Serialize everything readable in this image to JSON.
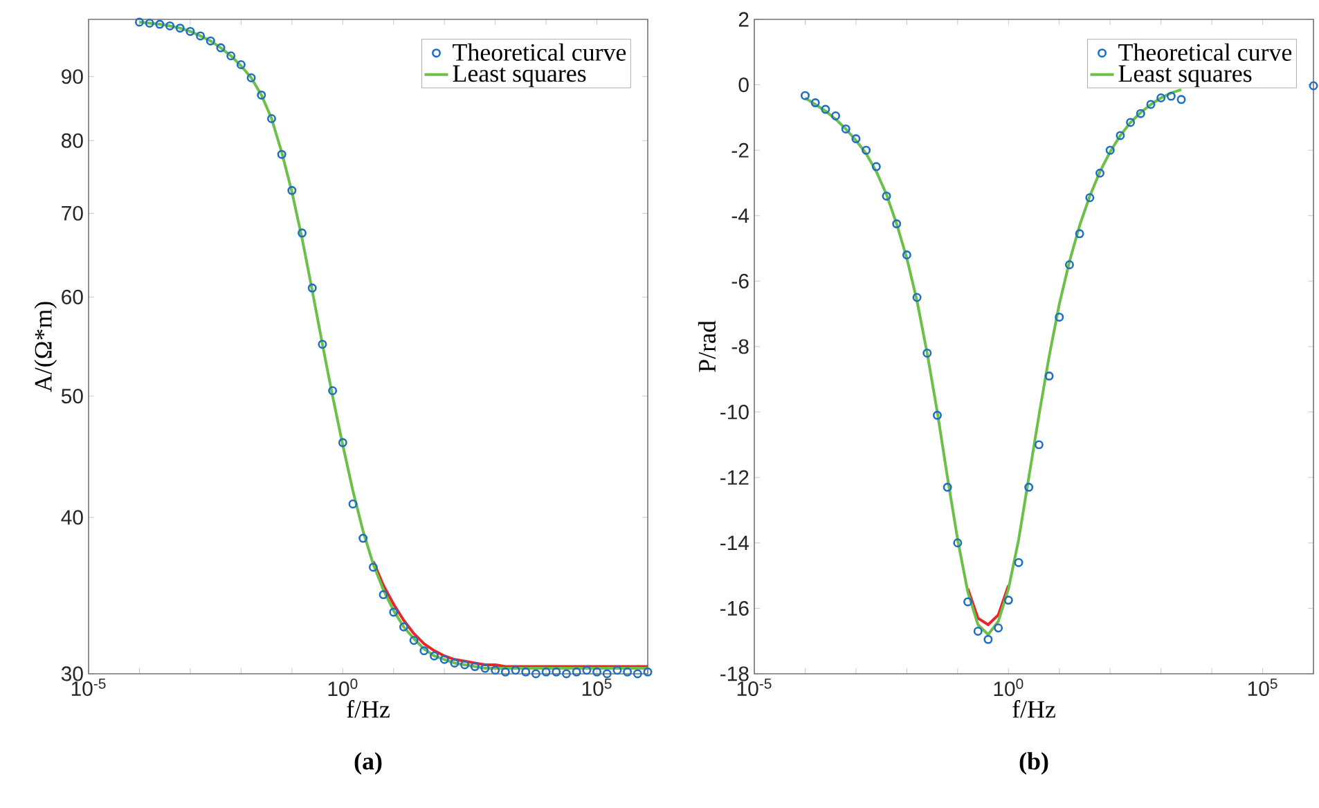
{
  "chart_data": [
    {
      "type": "scatter",
      "title": "(a)",
      "xlabel": "f/Hz",
      "ylabel": "A/(Ω*m)",
      "log": "xy",
      "legend": "top right",
      "xlim": [
        1e-05,
        1000000.0
      ],
      "ylim": [
        30,
        100
      ],
      "xticks": [
        {
          "value": 1e-05,
          "label": "10$^{-5}$"
        },
        {
          "value": 0.0001,
          "label": null
        },
        {
          "value": 0.001,
          "label": null
        },
        {
          "value": 0.01,
          "label": null
        },
        {
          "value": 0.1,
          "label": null
        },
        {
          "value": 1,
          "label": "10$^{0}$"
        },
        {
          "value": 10,
          "label": null
        },
        {
          "value": 100,
          "label": null
        },
        {
          "value": 1000,
          "label": null
        },
        {
          "value": 10000,
          "label": null
        },
        {
          "value": 100000,
          "label": "10$^{5}$"
        },
        {
          "value": 1000000.0,
          "label": null
        }
      ],
      "yticks": [
        30,
        40,
        50,
        60,
        70,
        80,
        90
      ],
      "x": [
        0.0001,
        0.0001585,
        0.0002512,
        0.0003981,
        0.000631,
        0.001,
        0.001585,
        0.002512,
        0.003981,
        0.00631,
        0.01,
        0.01585,
        0.02512,
        0.03981,
        0.0631,
        0.1,
        0.1585,
        0.2512,
        0.3981,
        0.631,
        1,
        1.585,
        2.512,
        3.981,
        6.31,
        10,
        15.85,
        25.12,
        39.81,
        63.1,
        100,
        158.5,
        251.2,
        398.1,
        631,
        1000,
        1585,
        2512,
        3981,
        6310,
        10000.0,
        15850.0,
        25120.0,
        39810.0,
        63100.0,
        100000.0,
        158500.0,
        251200.0,
        398100.0,
        631000.0,
        1000000.0
      ],
      "series": [
        {
          "name": "Theoretical curve",
          "type": "scatter",
          "marker": "circle",
          "color": "#1f6fc0",
          "values": [
            99.5,
            99.3,
            99.1,
            98.8,
            98.4,
            97.8,
            97.0,
            96.1,
            94.9,
            93.5,
            92.0,
            89.8,
            87.0,
            83.3,
            78.0,
            73.0,
            67.5,
            61.0,
            55.0,
            50.5,
            45.9,
            41.0,
            38.5,
            36.5,
            34.7,
            33.6,
            32.7,
            31.9,
            31.3,
            31.0,
            30.8,
            30.6,
            30.5,
            30.4,
            30.3,
            30.2,
            30.1,
            30.2,
            30.1,
            30.0,
            30.1,
            30.1,
            30.0,
            30.1,
            30.2,
            30.1,
            30.0,
            30.2,
            30.1,
            30.0,
            30.1
          ]
        },
        {
          "type": "line",
          "color": "#e8262a",
          "values": [
            null,
            null,
            null,
            null,
            null,
            null,
            null,
            null,
            null,
            null,
            null,
            null,
            null,
            null,
            null,
            null,
            null,
            null,
            null,
            null,
            null,
            null,
            null,
            36.9,
            35.3,
            34.1,
            33.1,
            32.3,
            31.7,
            31.3,
            31.0,
            30.8,
            30.7,
            30.6,
            30.5,
            30.5,
            30.4,
            30.4,
            30.4,
            30.4,
            30.4,
            30.4,
            30.4,
            30.4,
            30.4,
            30.4,
            30.4,
            30.4,
            30.4,
            30.4,
            30.4
          ]
        },
        {
          "name": "Least squares",
          "type": "line",
          "color": "#6cc04a",
          "values": [
            99.5,
            99.3,
            99.1,
            98.8,
            98.4,
            97.8,
            97.0,
            96.1,
            94.9,
            93.5,
            91.8,
            89.8,
            87.0,
            83.3,
            78.3,
            72.8,
            66.8,
            60.7,
            55.0,
            50.0,
            45.7,
            42.0,
            39.0,
            36.7,
            35.0,
            33.7,
            32.7,
            32.0,
            31.4,
            31.0,
            30.8,
            30.6,
            30.5,
            30.4,
            30.3,
            30.3,
            30.3,
            30.3,
            30.3,
            30.3,
            30.3,
            30.3,
            30.3,
            30.3,
            30.3,
            30.3,
            30.3,
            30.3,
            30.3,
            30.3,
            30.3
          ]
        }
      ]
    },
    {
      "type": "scatter",
      "title": "(b)",
      "xlabel": "f/Hz",
      "ylabel": "P/rad",
      "log": "x",
      "legend": "top right",
      "xlim": [
        1e-05,
        1000000.0
      ],
      "ylim": [
        -18,
        2
      ],
      "xticks": [
        {
          "value": 1e-05,
          "label": "10$^{-5}$"
        },
        {
          "value": 0.0001,
          "label": null
        },
        {
          "value": 0.001,
          "label": null
        },
        {
          "value": 0.01,
          "label": null
        },
        {
          "value": 0.1,
          "label": null
        },
        {
          "value": 1,
          "label": "10$^{0}$"
        },
        {
          "value": 10,
          "label": null
        },
        {
          "value": 100,
          "label": null
        },
        {
          "value": 1000,
          "label": null
        },
        {
          "value": 10000,
          "label": null
        },
        {
          "value": 100000,
          "label": "10$^{5}$"
        },
        {
          "value": 1000000.0,
          "label": null
        }
      ],
      "yticks": [
        -18,
        -16,
        -14,
        -12,
        -10,
        -8,
        -6,
        -4,
        -2,
        0,
        2
      ],
      "x": [
        0.0001,
        0.0001585,
        0.0002512,
        0.0003981,
        0.000631,
        0.001,
        0.001585,
        0.002512,
        0.003981,
        0.00631,
        0.01,
        0.01585,
        0.02512,
        0.03981,
        0.0631,
        0.1,
        0.1585,
        0.2512,
        0.3981,
        0.631,
        1,
        1.585,
        2.512,
        3.981,
        6.31,
        10,
        15.85,
        25.12,
        39.81,
        63.1,
        100,
        158.5,
        251.2,
        398.1,
        631,
        1000,
        1585,
        2512,
        3981,
        6310,
        10000.0,
        15850.0,
        25120.0,
        39810.0,
        63100.0,
        100000.0,
        158500.0,
        251200.0,
        398100.0,
        631000.0,
        1000000.0
      ],
      "series": [
        {
          "name": "Theoretical curve",
          "type": "scatter",
          "marker": "circle",
          "color": "#1f6fc0",
          "values": [
            -0.33,
            -0.55,
            -0.75,
            -0.95,
            -1.35,
            -1.65,
            -2.0,
            -2.5,
            -3.4,
            -4.25,
            -5.2,
            -6.5,
            -8.2,
            -10.1,
            -12.3,
            -14.0,
            -15.8,
            -16.7,
            -16.95,
            -16.6,
            -15.75,
            -14.6,
            -12.3,
            -11.0,
            -8.9,
            -7.1,
            -5.5,
            -4.55,
            -3.45,
            -2.7,
            -2.0,
            -1.55,
            -1.15,
            -0.88,
            -0.6,
            -0.4,
            -0.35,
            -0.45,
            null,
            null,
            null,
            null,
            null,
            null,
            null,
            null,
            null,
            null,
            null,
            null,
            -0.03
          ]
        },
        {
          "type": "line",
          "color": "#e8262a",
          "values": [
            null,
            null,
            null,
            null,
            null,
            null,
            null,
            null,
            null,
            null,
            null,
            null,
            null,
            null,
            null,
            null,
            -15.4,
            -16.3,
            -16.5,
            -16.2,
            -15.3,
            null,
            null,
            null,
            null,
            null,
            null,
            null,
            null,
            null,
            null,
            null,
            null,
            null,
            null,
            null,
            null,
            null,
            null,
            null,
            null,
            null,
            null,
            null,
            null,
            null,
            null,
            null,
            null,
            null,
            null
          ]
        },
        {
          "name": "Least squares",
          "type": "line",
          "color": "#6cc04a",
          "values": [
            -0.4,
            -0.6,
            -0.8,
            -1.05,
            -1.35,
            -1.7,
            -2.1,
            -2.65,
            -3.35,
            -4.25,
            -5.3,
            -6.6,
            -8.2,
            -10.0,
            -12.0,
            -13.9,
            -15.5,
            -16.5,
            -16.8,
            -16.4,
            -15.4,
            -13.9,
            -12.0,
            -10.1,
            -8.3,
            -6.7,
            -5.4,
            -4.3,
            -3.4,
            -2.65,
            -2.05,
            -1.55,
            -1.15,
            -0.85,
            -0.6,
            -0.4,
            -0.25,
            -0.15,
            null,
            null,
            null,
            null,
            null,
            null,
            null,
            null,
            null,
            null,
            null,
            null,
            null
          ]
        }
      ]
    }
  ]
}
